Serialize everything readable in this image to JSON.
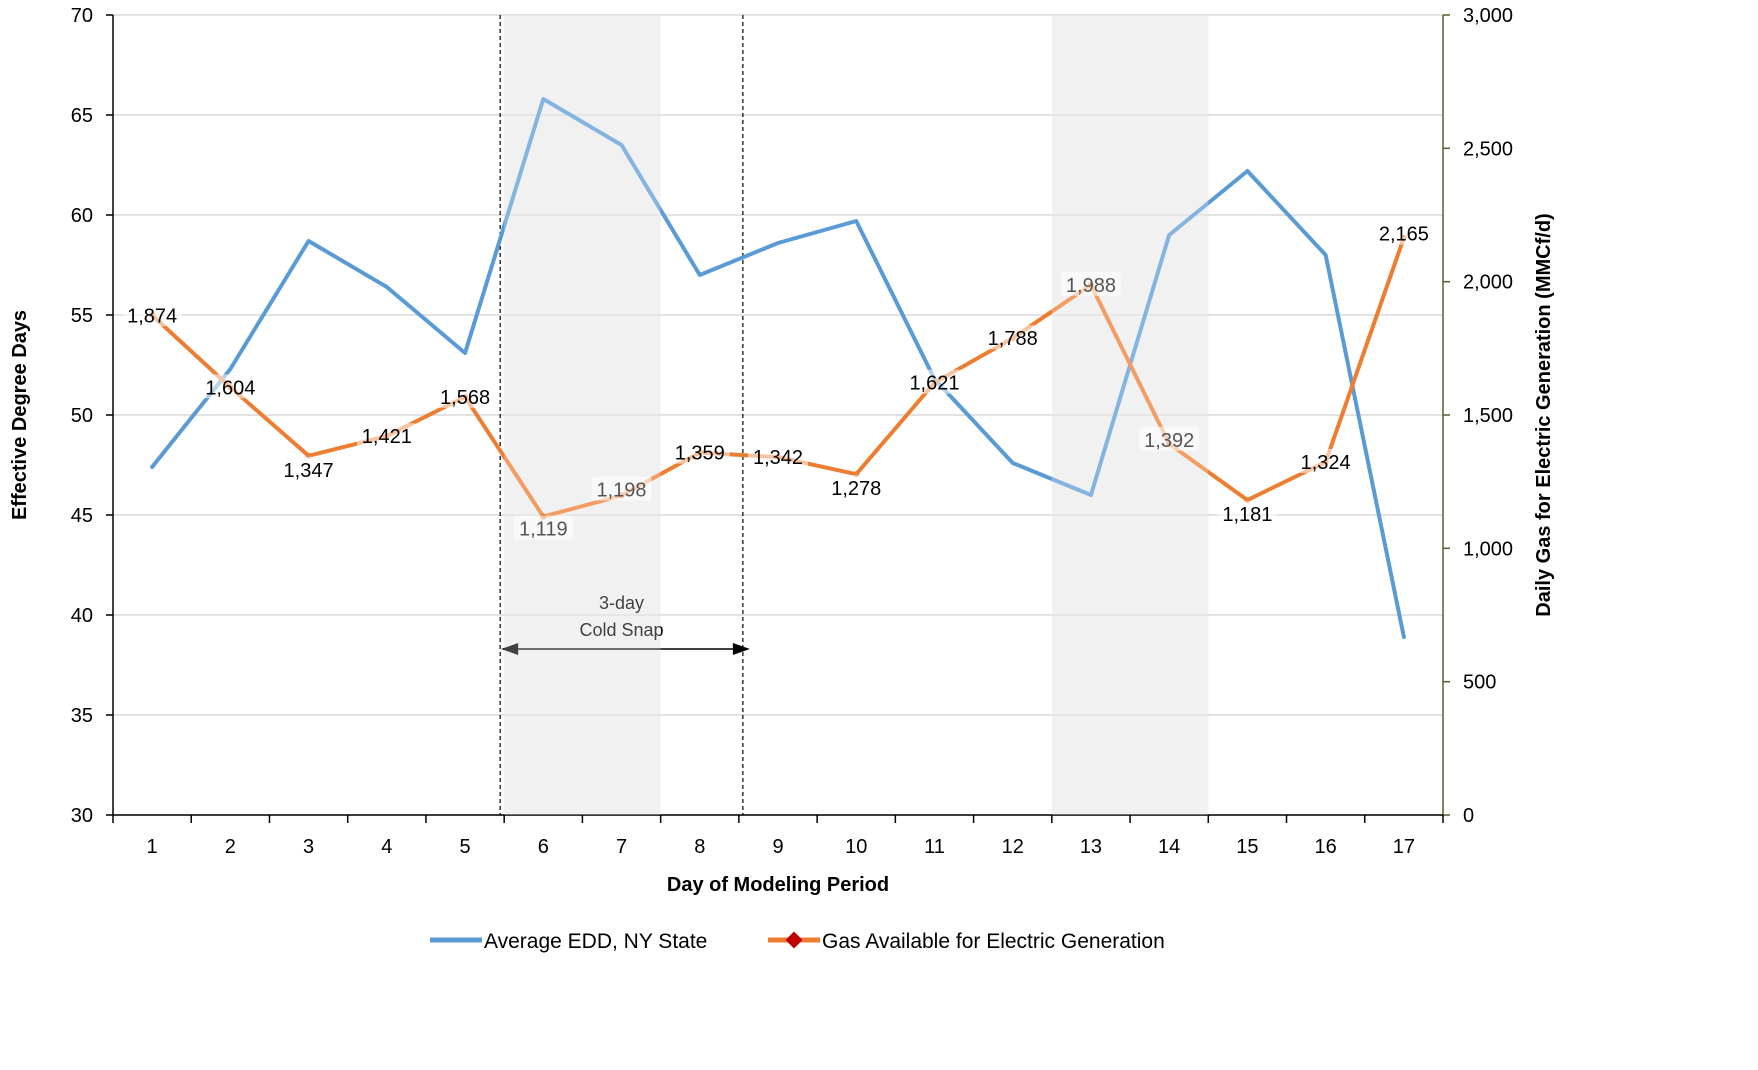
{
  "chart_data": {
    "type": "line",
    "xlabel": "Day of Modeling Period",
    "ylabel_left": "Effective Degree Days",
    "ylabel_right": "Daily Gas for Electric Generation (MMCf/d)",
    "x": [
      1,
      2,
      3,
      4,
      5,
      6,
      7,
      8,
      9,
      10,
      11,
      12,
      13,
      14,
      15,
      16,
      17
    ],
    "x_ticks": [
      "1",
      "2",
      "3",
      "4",
      "5",
      "6",
      "7",
      "8",
      "9",
      "10",
      "11",
      "12",
      "13",
      "14",
      "15",
      "16",
      "17"
    ],
    "ylim_left": [
      30,
      70
    ],
    "yticks_left": [
      "30",
      "35",
      "40",
      "45",
      "50",
      "55",
      "60",
      "65",
      "70"
    ],
    "ylim_right": [
      0,
      3000
    ],
    "yticks_right": [
      "0",
      "500",
      "1,000",
      "1,500",
      "2,000",
      "2,500",
      "3,000"
    ],
    "grid": "horizontal",
    "legend_position": "bottom",
    "series": [
      {
        "name": "Average EDD, NY State",
        "axis": "left",
        "color": "#5b9bd5",
        "values": [
          47.4,
          52.3,
          58.7,
          56.4,
          53.1,
          65.8,
          63.5,
          57.0,
          58.6,
          59.7,
          51.8,
          47.6,
          46.0,
          59.0,
          62.2,
          58.0,
          38.9
        ]
      },
      {
        "name": "Gas Available for Electric Generation",
        "axis": "right",
        "color": "#ed7d31",
        "marker_color": "#c00000",
        "values": [
          1874,
          1604,
          1347,
          1421,
          1568,
          1119,
          1198,
          1359,
          1342,
          1278,
          1621,
          1788,
          1988,
          1392,
          1181,
          1324,
          2165
        ],
        "data_labels": [
          "1,874",
          "1,604",
          "1,347",
          "1,421",
          "1,568",
          "1,119",
          "1,198",
          "1,359",
          "1,342",
          "1,278",
          "1,621",
          "1,788",
          "1,988",
          "1,392",
          "1,181",
          "1,324",
          "2,165"
        ]
      }
    ],
    "shaded_days": [
      [
        6,
        7
      ],
      [
        13,
        14
      ]
    ],
    "shade_color": "#ededed",
    "annotation": {
      "line1": "3-day",
      "line2": "Cold Snap",
      "from_day": 5.5,
      "to_day": 8.5
    }
  }
}
